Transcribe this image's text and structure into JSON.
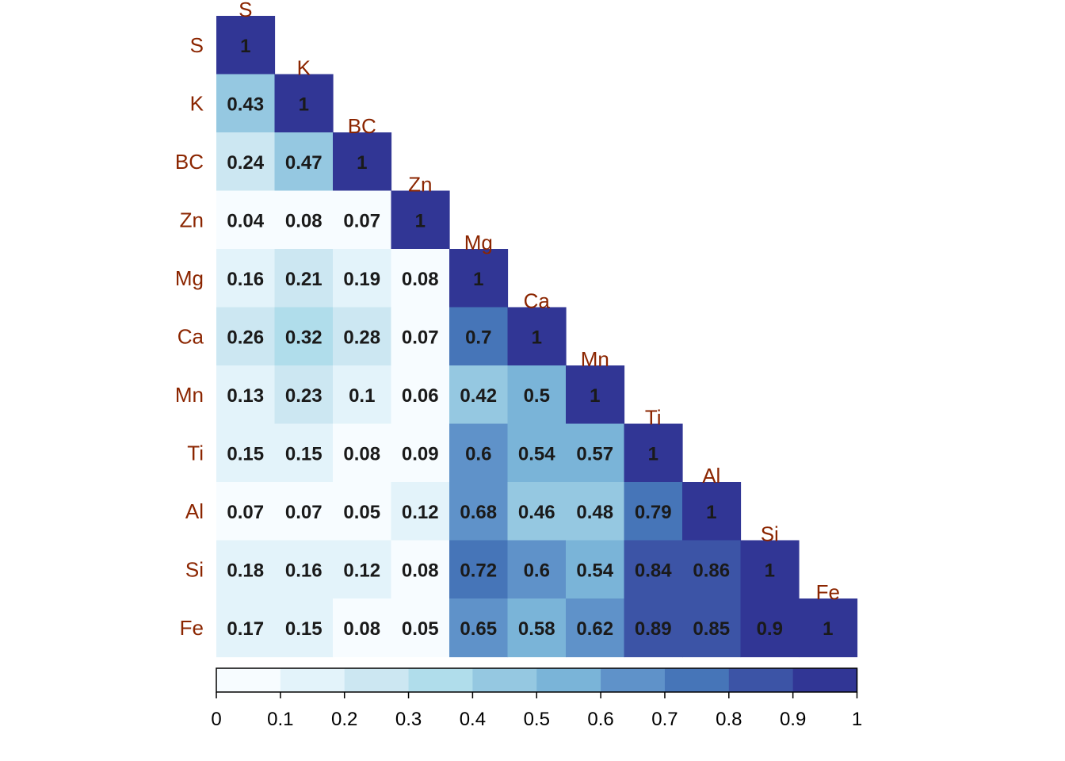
{
  "chart_data": {
    "type": "heatmap",
    "variables": [
      "S",
      "K",
      "BC",
      "Zn",
      "Mg",
      "Ca",
      "Mn",
      "Ti",
      "Al",
      "Si",
      "Fe"
    ],
    "values": [
      [
        1
      ],
      [
        0.43,
        1
      ],
      [
        0.24,
        0.47,
        1
      ],
      [
        0.04,
        0.08,
        0.07,
        1
      ],
      [
        0.16,
        0.21,
        0.19,
        0.08,
        1
      ],
      [
        0.26,
        0.32,
        0.28,
        0.07,
        0.7,
        1
      ],
      [
        0.13,
        0.23,
        0.1,
        0.06,
        0.42,
        0.5,
        1
      ],
      [
        0.15,
        0.15,
        0.08,
        0.09,
        0.6,
        0.54,
        0.57,
        1
      ],
      [
        0.07,
        0.07,
        0.05,
        0.12,
        0.68,
        0.46,
        0.48,
        0.79,
        1
      ],
      [
        0.18,
        0.16,
        0.12,
        0.08,
        0.72,
        0.6,
        0.54,
        0.84,
        0.86,
        1
      ],
      [
        0.17,
        0.15,
        0.08,
        0.05,
        0.65,
        0.58,
        0.62,
        0.89,
        0.85,
        0.9,
        1
      ]
    ],
    "layout": "lower-triangle",
    "value_range": [
      0,
      1
    ],
    "colorbar": {
      "ticks": [
        "0",
        "0.1",
        "0.2",
        "0.3",
        "0.4",
        "0.5",
        "0.6",
        "0.7",
        "0.8",
        "0.9",
        "1"
      ],
      "bin_colors": [
        "#F7FCFF",
        "#E3F3FA",
        "#CCE7F2",
        "#B0DDEB",
        "#95C8E1",
        "#7AB4D8",
        "#5F92C9",
        "#4675B8",
        "#3C54A6",
        "#313695"
      ],
      "placement": "bottom"
    },
    "legend": "none",
    "grid": false,
    "label_color": "#8B2500"
  }
}
